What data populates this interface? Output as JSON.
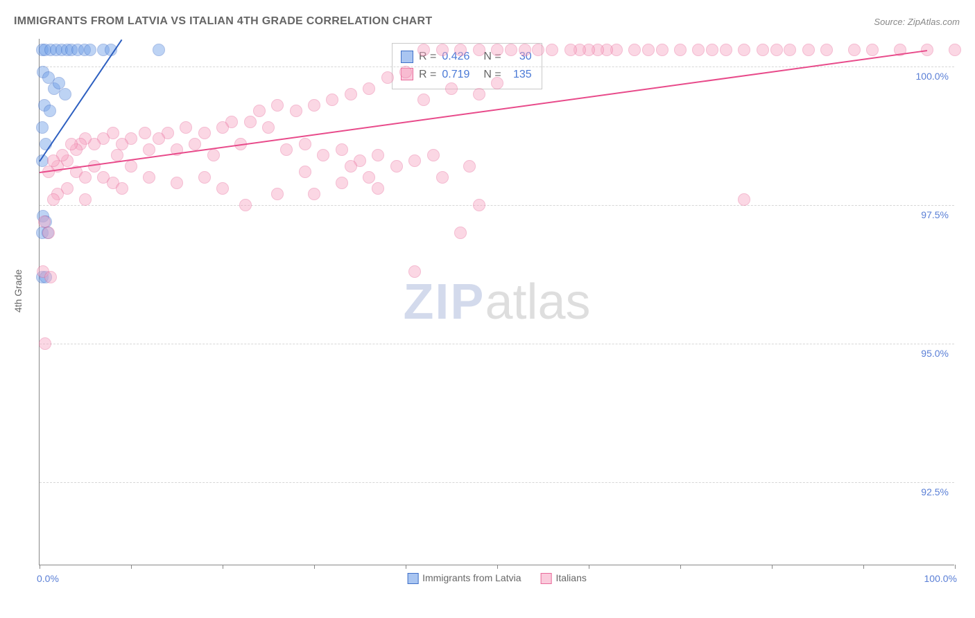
{
  "title": "IMMIGRANTS FROM LATVIA VS ITALIAN 4TH GRADE CORRELATION CHART",
  "source_label": "Source:",
  "source_value": "ZipAtlas.com",
  "yaxis_title": "4th Grade",
  "watermark_left": "ZIP",
  "watermark_right": "atlas",
  "chart": {
    "type": "scatter",
    "background_color": "#ffffff",
    "grid_color": "#d6d6d6",
    "axis_color": "#888888",
    "label_color": "#5a7fd6",
    "text_color": "#666666",
    "label_fontsize": 14,
    "title_fontsize": 16,
    "xlim": [
      0,
      100
    ],
    "ylim": [
      91.0,
      100.5
    ],
    "yticks": [
      92.5,
      95.0,
      97.5,
      100.0
    ],
    "ytick_labels": [
      "92.5%",
      "95.0%",
      "97.5%",
      "100.0%"
    ],
    "xtick_positions": [
      0,
      10,
      20,
      30,
      40,
      50,
      60,
      70,
      80,
      90,
      100
    ],
    "xlabel_0": "0.0%",
    "xlabel_100": "100.0%",
    "marker_radius": 9,
    "marker_opacity": 0.45,
    "marker_border_opacity": 0.75,
    "series": [
      {
        "name": "Immigrants from Latvia",
        "legend_label": "Immigrants from Latvia",
        "fill_color": "#6f9fe8",
        "stroke_color": "#3f6fc8",
        "R": "0.426",
        "N": "30",
        "trend": {
          "x1": 0,
          "y1": 98.3,
          "x2": 9,
          "y2": 100.5,
          "color": "#2d5fc0"
        },
        "points": [
          [
            0.3,
            100.3
          ],
          [
            0.6,
            100.3
          ],
          [
            1.2,
            100.3
          ],
          [
            1.8,
            100.3
          ],
          [
            2.4,
            100.3
          ],
          [
            3.0,
            100.3
          ],
          [
            3.5,
            100.3
          ],
          [
            4.2,
            100.3
          ],
          [
            4.9,
            100.3
          ],
          [
            5.5,
            100.3
          ],
          [
            7.0,
            100.3
          ],
          [
            7.8,
            100.3
          ],
          [
            13.0,
            100.3
          ],
          [
            0.4,
            99.9
          ],
          [
            1.0,
            99.8
          ],
          [
            1.6,
            99.6
          ],
          [
            2.1,
            99.7
          ],
          [
            2.8,
            99.5
          ],
          [
            0.5,
            99.3
          ],
          [
            1.1,
            99.2
          ],
          [
            0.3,
            98.9
          ],
          [
            0.7,
            98.6
          ],
          [
            0.3,
            98.3
          ],
          [
            0.4,
            97.3
          ],
          [
            0.7,
            97.2
          ],
          [
            0.3,
            97.0
          ],
          [
            0.9,
            97.0
          ],
          [
            0.3,
            96.2
          ],
          [
            0.7,
            96.2
          ]
        ]
      },
      {
        "name": "Italians",
        "legend_label": "Italians",
        "fill_color": "#f7a8c4",
        "stroke_color": "#e86a9a",
        "R": "0.719",
        "N": "135",
        "trend": {
          "x1": 0,
          "y1": 98.1,
          "x2": 97,
          "y2": 100.3,
          "color": "#e84a8a"
        },
        "points": [
          [
            100,
            100.3
          ],
          [
            97,
            100.3
          ],
          [
            94,
            100.3
          ],
          [
            91,
            100.3
          ],
          [
            89,
            100.3
          ],
          [
            86,
            100.3
          ],
          [
            84,
            100.3
          ],
          [
            82,
            100.3
          ],
          [
            80.5,
            100.3
          ],
          [
            79,
            100.3
          ],
          [
            77,
            100.3
          ],
          [
            75,
            100.3
          ],
          [
            73.5,
            100.3
          ],
          [
            72,
            100.3
          ],
          [
            70,
            100.3
          ],
          [
            68,
            100.3
          ],
          [
            66.5,
            100.3
          ],
          [
            65,
            100.3
          ],
          [
            63,
            100.3
          ],
          [
            62,
            100.3
          ],
          [
            61,
            100.3
          ],
          [
            60,
            100.3
          ],
          [
            59,
            100.3
          ],
          [
            58,
            100.3
          ],
          [
            56,
            100.3
          ],
          [
            54.5,
            100.3
          ],
          [
            53,
            100.3
          ],
          [
            51.5,
            100.3
          ],
          [
            50,
            100.3
          ],
          [
            48,
            100.3
          ],
          [
            46,
            100.3
          ],
          [
            44,
            100.3
          ],
          [
            42,
            100.3
          ],
          [
            40,
            99.9
          ],
          [
            38,
            99.8
          ],
          [
            45,
            99.6
          ],
          [
            50,
            99.7
          ],
          [
            48,
            99.5
          ],
          [
            42,
            99.4
          ],
          [
            36,
            99.6
          ],
          [
            34,
            99.5
          ],
          [
            32,
            99.4
          ],
          [
            30,
            99.3
          ],
          [
            28,
            99.2
          ],
          [
            26,
            99.3
          ],
          [
            24,
            99.2
          ],
          [
            25,
            98.9
          ],
          [
            23,
            99.0
          ],
          [
            21,
            99.0
          ],
          [
            20,
            98.9
          ],
          [
            18,
            98.8
          ],
          [
            16,
            98.9
          ],
          [
            14,
            98.8
          ],
          [
            13,
            98.7
          ],
          [
            11.5,
            98.8
          ],
          [
            10,
            98.7
          ],
          [
            9,
            98.6
          ],
          [
            8,
            98.8
          ],
          [
            7,
            98.7
          ],
          [
            6,
            98.6
          ],
          [
            5,
            98.7
          ],
          [
            4.5,
            98.6
          ],
          [
            4,
            98.5
          ],
          [
            3.5,
            98.6
          ],
          [
            12,
            98.5
          ],
          [
            17,
            98.6
          ],
          [
            19,
            98.4
          ],
          [
            15,
            98.5
          ],
          [
            22,
            98.6
          ],
          [
            27,
            98.5
          ],
          [
            29,
            98.6
          ],
          [
            31,
            98.4
          ],
          [
            33,
            98.5
          ],
          [
            35,
            98.3
          ],
          [
            37,
            98.4
          ],
          [
            39,
            98.2
          ],
          [
            41,
            98.3
          ],
          [
            43,
            98.4
          ],
          [
            47,
            98.2
          ],
          [
            44,
            98.0
          ],
          [
            36,
            98.0
          ],
          [
            3,
            98.3
          ],
          [
            2.5,
            98.4
          ],
          [
            2,
            98.2
          ],
          [
            1.5,
            98.3
          ],
          [
            1,
            98.1
          ],
          [
            4,
            98.1
          ],
          [
            5,
            98.0
          ],
          [
            6,
            98.2
          ],
          [
            7,
            98.0
          ],
          [
            8,
            97.9
          ],
          [
            9,
            97.8
          ],
          [
            3,
            97.8
          ],
          [
            2,
            97.7
          ],
          [
            1.5,
            97.6
          ],
          [
            5,
            97.6
          ],
          [
            48,
            97.5
          ],
          [
            77,
            97.6
          ],
          [
            41,
            96.3
          ],
          [
            46,
            97.0
          ],
          [
            0.6,
            95.0
          ],
          [
            0.5,
            97.2
          ],
          [
            1,
            97.0
          ],
          [
            0.4,
            96.3
          ],
          [
            1.2,
            96.2
          ],
          [
            22.5,
            97.5
          ],
          [
            29,
            98.1
          ],
          [
            33,
            97.9
          ],
          [
            37,
            97.8
          ],
          [
            34,
            98.2
          ],
          [
            30,
            97.7
          ],
          [
            26,
            97.7
          ],
          [
            20,
            97.8
          ],
          [
            18,
            98.0
          ],
          [
            15,
            97.9
          ],
          [
            12,
            98.0
          ],
          [
            10,
            98.2
          ],
          [
            8.5,
            98.4
          ]
        ]
      }
    ]
  },
  "stats_box": {
    "R_label": "R =",
    "N_label": "N ="
  }
}
